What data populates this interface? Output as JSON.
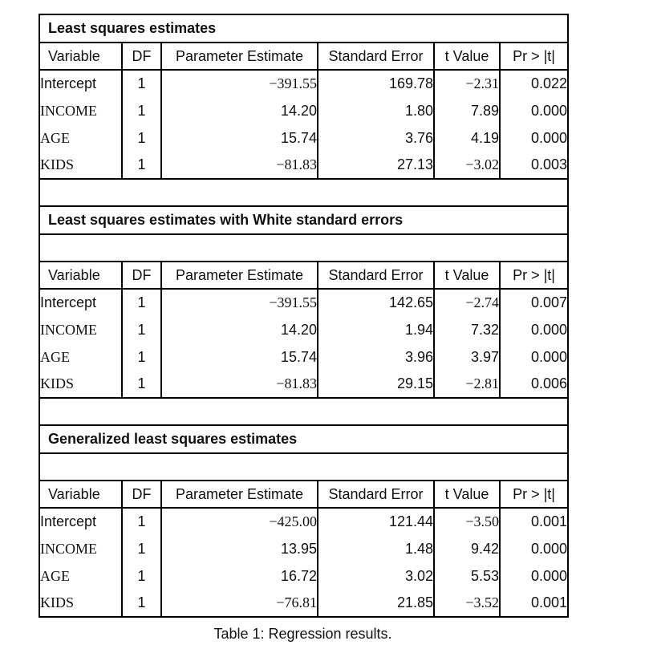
{
  "caption": "Table 1: Regression results.",
  "columns": [
    "Variable",
    "DF",
    "Parameter Estimate",
    "Standard Error",
    "t Value",
    "Pr > |t|"
  ],
  "sections": [
    {
      "title": "Least squares estimates",
      "rows": [
        [
          "Intercept",
          "1",
          "−391.55",
          "169.78",
          "−2.31",
          "0.022"
        ],
        [
          "INCOME",
          "1",
          "14.20",
          "1.80",
          "7.89",
          "0.000"
        ],
        [
          "AGE",
          "1",
          "15.74",
          "3.76",
          "4.19",
          "0.000"
        ],
        [
          "KIDS",
          "1",
          "−81.83",
          "27.13",
          "−3.02",
          "0.003"
        ]
      ]
    },
    {
      "title": "Least squares estimates with White standard errors",
      "rows": [
        [
          "Intercept",
          "1",
          "−391.55",
          "142.65",
          "−2.74",
          "0.007"
        ],
        [
          "INCOME",
          "1",
          "14.20",
          "1.94",
          "7.32",
          "0.000"
        ],
        [
          "AGE",
          "1",
          "15.74",
          "3.96",
          "3.97",
          "0.000"
        ],
        [
          "KIDS",
          "1",
          "−81.83",
          "29.15",
          "−2.81",
          "0.006"
        ]
      ]
    },
    {
      "title": "Generalized least squares estimates",
      "rows": [
        [
          "Intercept",
          "1",
          "−425.00",
          "121.44",
          "−3.50",
          "0.001"
        ],
        [
          "INCOME",
          "1",
          "13.95",
          "1.48",
          "9.42",
          "0.000"
        ],
        [
          "AGE",
          "1",
          "16.72",
          "3.02",
          "5.53",
          "0.000"
        ],
        [
          "KIDS",
          "1",
          "−76.81",
          "21.85",
          "−3.52",
          "0.001"
        ]
      ]
    }
  ]
}
